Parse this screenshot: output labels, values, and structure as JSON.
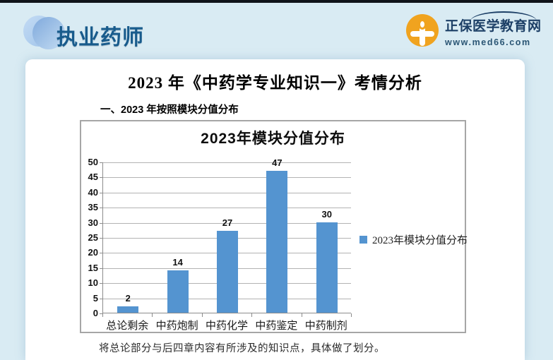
{
  "header": {
    "brand_left": "执业药师",
    "brand_right": {
      "name": "正保医学教育网",
      "url": "www.med66.com"
    }
  },
  "main": {
    "title": "2023 年《中药学专业知识一》考情分析",
    "section_heading": "一、2023 年按照模块分值分布",
    "note": "将总论部分与后四章内容有所涉及的知识点，具体做了划分。"
  },
  "chart_data": {
    "type": "bar",
    "title": "2023年模块分值分布",
    "categories": [
      "总论剩余",
      "中药炮制",
      "中药化学",
      "中药鉴定",
      "中药制剂"
    ],
    "values": [
      2,
      14,
      27,
      47,
      30
    ],
    "legend": "2023年模块分值分布",
    "legend_position": "right",
    "xlabel": "",
    "ylabel": "",
    "ylim": [
      0,
      50
    ],
    "ytick_step": 5,
    "grid": true,
    "bar_color": "#5494d0"
  },
  "colors": {
    "page_background": "#d9ebf3",
    "top_strip": "#10131a",
    "brand_blue": "#185b8c",
    "med66_orange": "#f0a31f",
    "med66_navy": "#1c3f66",
    "bar_blue": "#5494d0",
    "chart_border": "#a6a6a6"
  }
}
